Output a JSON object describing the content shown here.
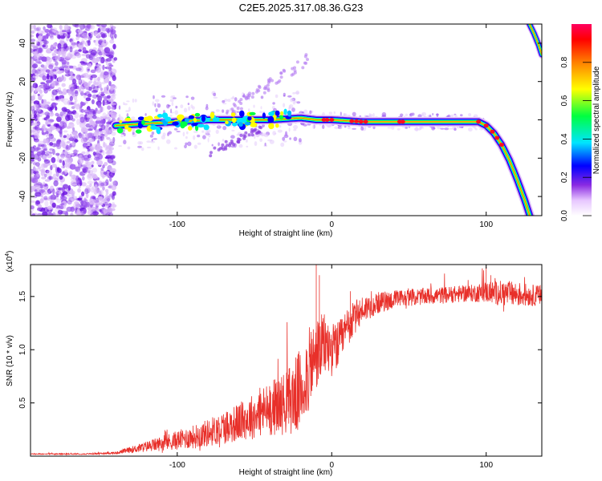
{
  "title": "C2E5.2025.317.08.36.G23",
  "chart_data": [
    {
      "type": "heatmap",
      "name": "spectrogram",
      "xlabel": "Height of straight line (km)",
      "ylabel": "Frequency (Hz)",
      "xlim": [
        -195,
        136
      ],
      "ylim": [
        -50,
        50
      ],
      "xticks": [
        "-100",
        "0",
        "100"
      ],
      "yticks": [
        "-40",
        "-20",
        "0",
        "20",
        "40"
      ],
      "colorbar": {
        "label": "Normalized spectral amplitude",
        "range": [
          0,
          1
        ],
        "ticks": [
          "0.0",
          "0.2",
          "0.4",
          "0.6",
          "0.8"
        ],
        "colors": [
          "#ffffff",
          "#e7c6ff",
          "#8a2be2",
          "#0000ff",
          "#00e5ff",
          "#00ff40",
          "#ffff00",
          "#ff8000",
          "#ff0000",
          "#ff0060"
        ]
      },
      "noise_region": {
        "x": [
          -195,
          -140
        ],
        "y": [
          -50,
          50
        ],
        "color": "#7a30e0"
      },
      "carrier_track": {
        "x": [
          -140,
          -120,
          -100,
          -80,
          -60,
          -40,
          -20,
          -10,
          0,
          20,
          40,
          60,
          80,
          95,
          100,
          105,
          110,
          115,
          120,
          125,
          129
        ],
        "freq": [
          -3,
          -2,
          -1,
          0,
          0,
          0,
          1,
          0,
          0,
          -1,
          -1,
          -1,
          -1,
          -1,
          -3,
          -7,
          -13,
          -21,
          -31,
          -42,
          -52
        ]
      },
      "secondary_track": {
        "x": [
          128,
          131,
          134,
          136
        ],
        "freq": [
          50,
          45,
          39,
          34
        ]
      }
    },
    {
      "type": "line",
      "name": "snr",
      "xlabel": "Height of straight line (km)",
      "ylabel": "SNR (10 * v/v)",
      "y_multiplier": "(x10",
      "y_multiplier_exp": "4",
      "xlim": [
        -195,
        136
      ],
      "ylim": [
        0,
        1.8
      ],
      "xticks": [
        "-100",
        "0",
        "100"
      ],
      "yticks": [
        "0.5",
        "1.0",
        "1.5"
      ],
      "color": "#e8302a",
      "series": [
        {
          "name": "SNR",
          "x": [
            -195,
            -160,
            -140,
            -130,
            -120,
            -110,
            -100,
            -90,
            -80,
            -70,
            -60,
            -50,
            -40,
            -30,
            -25,
            -20,
            -15,
            -10,
            -5,
            0,
            5,
            10,
            15,
            20,
            30,
            40,
            50,
            60,
            70,
            80,
            90,
            100,
            110,
            120,
            130,
            136
          ],
          "y": [
            0.02,
            0.02,
            0.03,
            0.06,
            0.09,
            0.12,
            0.15,
            0.18,
            0.22,
            0.27,
            0.32,
            0.38,
            0.45,
            0.5,
            0.55,
            0.62,
            0.8,
            0.95,
            1.05,
            1.0,
            1.05,
            1.2,
            1.3,
            1.38,
            1.44,
            1.47,
            1.49,
            1.5,
            1.51,
            1.52,
            1.53,
            1.54,
            1.53,
            1.52,
            1.51,
            1.51
          ],
          "noise": [
            0.005,
            0.005,
            0.01,
            0.03,
            0.05,
            0.07,
            0.09,
            0.11,
            0.13,
            0.16,
            0.18,
            0.22,
            0.26,
            0.3,
            0.35,
            0.4,
            0.4,
            0.35,
            0.3,
            0.25,
            0.22,
            0.2,
            0.16,
            0.13,
            0.1,
            0.09,
            0.08,
            0.08,
            0.08,
            0.08,
            0.08,
            0.1,
            0.12,
            0.12,
            0.1,
            0.1
          ]
        }
      ]
    }
  ]
}
